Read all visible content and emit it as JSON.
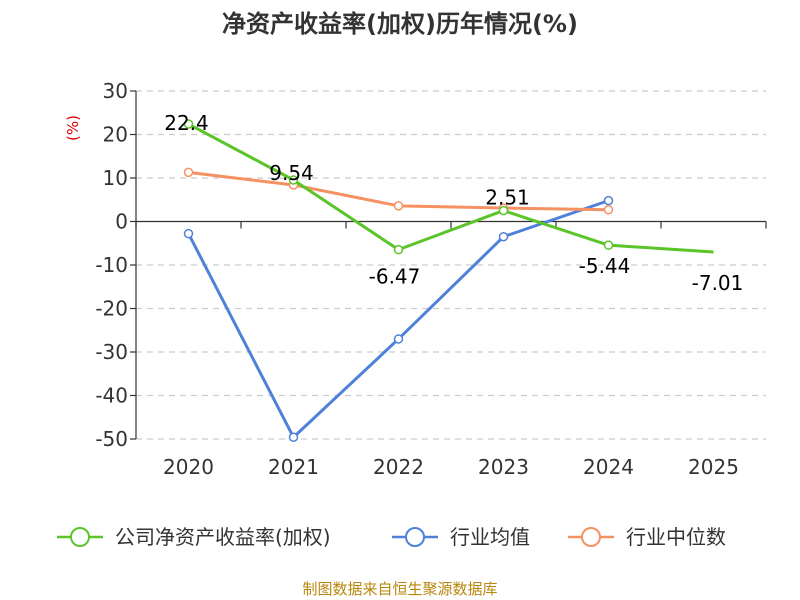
{
  "chart_data": {
    "type": "line",
    "title": "净资产收益率(加权)历年情况(%)",
    "ylabel": "(%)",
    "xlabel": "",
    "categories": [
      "2020",
      "2021",
      "2022",
      "2023",
      "2024",
      "2025"
    ],
    "ylim": [
      -50,
      30
    ],
    "yticks": [
      30,
      20,
      10,
      0,
      -10,
      -20,
      -30,
      -40,
      -50
    ],
    "series": [
      {
        "name": "公司净资产收益率(加权)",
        "color": "#5bc42a",
        "values": [
          22.4,
          9.54,
          -6.47,
          2.51,
          -5.44,
          -7.01
        ],
        "labels": [
          "22.4",
          "9.54",
          "-6.47",
          "2.51",
          "-5.44",
          "-7.01"
        ],
        "markers": [
          true,
          true,
          true,
          true,
          true,
          false
        ]
      },
      {
        "name": "行业均值",
        "color": "#4f81d8",
        "values": [
          -2.8,
          -49.6,
          -27.0,
          -3.5,
          4.8,
          null
        ]
      },
      {
        "name": "行业中位数",
        "color": "#f59162",
        "values": [
          11.3,
          8.4,
          3.6,
          3.1,
          2.7,
          null
        ]
      }
    ],
    "legend_position": "bottom",
    "grid": true
  },
  "footer": {
    "source": "制图数据来自恒生聚源数据库"
  }
}
